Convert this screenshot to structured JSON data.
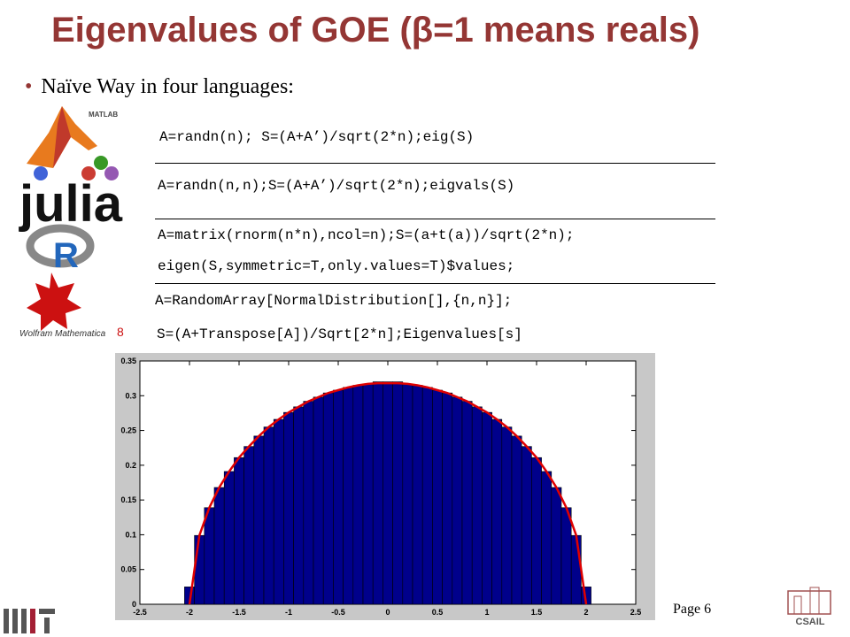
{
  "title": "Eigenvalues of GOE (β=1 means reals)",
  "bullet": "Naïve Way in four languages:",
  "code_blocks": [
    [
      "A=randn(n); S=(A+A’)/sqrt(2*n);eig(S)"
    ],
    [
      "A=randn(n,n);S=(A+A’)/sqrt(2*n);eigvals(S)"
    ],
    [
      "A=matrix(rnorm(n*n),ncol=n);S=(a+t(a))/sqrt(2*n);",
      "eigen(S,symmetric=T,only.values=T)$values;"
    ],
    [
      "A=RandomArray[NormalDistribution[],{n,n}];",
      "S=(A+Transpose[A])/Sqrt[2*n];Eigenvalues[s]"
    ]
  ],
  "logos": {
    "matlab": "MATLAB",
    "julia": "julia",
    "r": "R",
    "mathematica": "Wolfram Mathematica",
    "mathematica_version": "8",
    "csail": "CSAIL"
  },
  "page": "Page 6",
  "chart_data": {
    "type": "histogram",
    "bins": [
      -2.05,
      -1.95,
      -1.85,
      -1.75,
      -1.65,
      -1.55,
      -1.45,
      -1.35,
      -1.25,
      -1.15,
      -1.05,
      -0.95,
      -0.85,
      -0.75,
      -0.65,
      -0.55,
      -0.45,
      -0.35,
      -0.25,
      -0.15,
      -0.05,
      0.05,
      0.15,
      0.25,
      0.35,
      0.45,
      0.55,
      0.65,
      0.75,
      0.85,
      0.95,
      1.05,
      1.15,
      1.25,
      1.35,
      1.45,
      1.55,
      1.65,
      1.75,
      1.85,
      1.95,
      2.05
    ],
    "values": [
      0.025,
      0.099,
      0.139,
      0.168,
      0.191,
      0.211,
      0.227,
      0.242,
      0.255,
      0.266,
      0.276,
      0.284,
      0.292,
      0.298,
      0.304,
      0.308,
      0.312,
      0.315,
      0.317,
      0.32,
      0.32,
      0.32,
      0.317,
      0.315,
      0.312,
      0.308,
      0.304,
      0.298,
      0.292,
      0.284,
      0.276,
      0.266,
      0.255,
      0.242,
      0.227,
      0.211,
      0.191,
      0.168,
      0.139,
      0.099,
      0.025
    ],
    "color": "#00008b",
    "curve": {
      "color": "#e00000",
      "x": [
        -2,
        -1.9,
        -1.8,
        -1.7,
        -1.6,
        -1.5,
        -1.4,
        -1.3,
        -1.2,
        -1.1,
        -1,
        -0.9,
        -0.8,
        -0.7,
        -0.6,
        -0.5,
        -0.4,
        -0.3,
        -0.2,
        -0.1,
        0,
        0.1,
        0.2,
        0.3,
        0.4,
        0.5,
        0.6,
        0.7,
        0.8,
        0.9,
        1,
        1.1,
        1.2,
        1.3,
        1.4,
        1.5,
        1.6,
        1.7,
        1.8,
        1.9,
        2
      ],
      "values": [
        0,
        0.099,
        0.139,
        0.168,
        0.191,
        0.211,
        0.227,
        0.242,
        0.255,
        0.266,
        0.276,
        0.284,
        0.292,
        0.298,
        0.304,
        0.308,
        0.312,
        0.315,
        0.317,
        0.318,
        0.318,
        0.318,
        0.317,
        0.315,
        0.312,
        0.308,
        0.304,
        0.298,
        0.292,
        0.284,
        0.276,
        0.266,
        0.255,
        0.242,
        0.227,
        0.211,
        0.191,
        0.168,
        0.139,
        0.099,
        0
      ]
    },
    "xlim": [
      -2.5,
      2.5
    ],
    "xticks": [
      -2.5,
      -2,
      -1.5,
      -1,
      -0.5,
      0,
      0.5,
      1,
      1.5,
      2,
      2.5
    ],
    "ylim": [
      0,
      0.35
    ],
    "yticks": [
      0,
      0.05,
      0.1,
      0.15,
      0.2,
      0.25,
      0.3,
      0.35
    ]
  }
}
